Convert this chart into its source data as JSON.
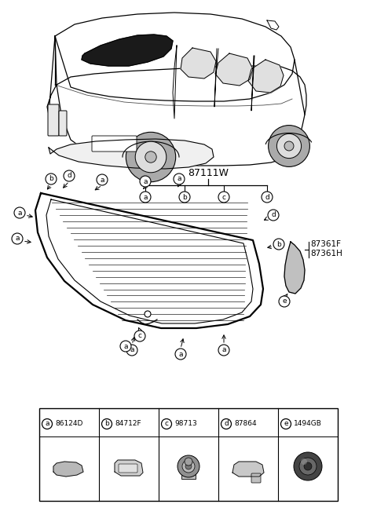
{
  "bg_color": "#ffffff",
  "part_number_main": "87111W",
  "part_numbers_side": [
    "87361F",
    "87361H"
  ],
  "legend": [
    {
      "letter": "a",
      "code": "86124D"
    },
    {
      "letter": "b",
      "code": "84712F"
    },
    {
      "letter": "c",
      "code": "98713"
    },
    {
      "letter": "d",
      "code": "87864"
    },
    {
      "letter": "e",
      "code": "1494GB"
    }
  ],
  "line_color": "#000000",
  "gray_fill": "#d8d8d8",
  "dark_fill": "#1a1a1a",
  "moulding_fill": "#c0c0c0"
}
